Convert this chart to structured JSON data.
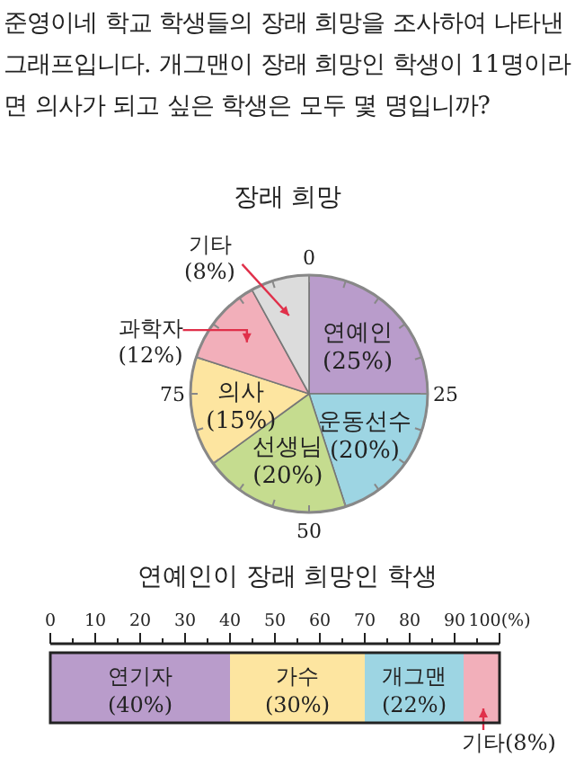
{
  "chart_data": [
    {
      "type": "pie",
      "title": "장래 희망",
      "annotations": [
        "준영이네 학교 학생들의 장래 희망을 조사하여 나타낸 그래프입니다. 개그맨이 장래 희망인 학생이 11명이라면 의사가 되고 싶은 학생은 모두 몇 명입니까?",
        "0",
        "25",
        "50",
        "75"
      ],
      "categories": [
        "연예인",
        "운동선수",
        "선생님",
        "의사",
        "과학자",
        "기타"
      ],
      "values": [
        25,
        20,
        20,
        15,
        12,
        8
      ],
      "value_labels": [
        "(25%)",
        "(20%)",
        "(20%)",
        "(15%)",
        "(12%)",
        "(8%)"
      ],
      "colors": [
        "#b99ccb",
        "#9dd5e3",
        "#c5dc8f",
        "#fde5a0",
        "#f2afba",
        "#dcdcdc"
      ]
    },
    {
      "type": "bar",
      "title": "연예인이 장래 희망인 학생",
      "orientation": "horizontal",
      "stacked": true,
      "categories": [
        null
      ],
      "series": [
        {
          "name": "연기자",
          "color": "#b99ccb",
          "values": [
            40
          ],
          "value_labels": [
            "(40%)"
          ]
        },
        {
          "name": "가수",
          "color": "#fde5a0",
          "values": [
            30
          ],
          "value_labels": [
            "(30%)"
          ]
        },
        {
          "name": "개그맨",
          "color": "#9dd5e3",
          "values": [
            22
          ],
          "value_labels": [
            "(22%)"
          ]
        },
        {
          "name": "기타",
          "color": "#f2afba",
          "values": [
            8
          ],
          "value_labels": [
            "(8%)"
          ]
        }
      ],
      "xlim": [
        0,
        100
      ],
      "xticks": [
        0,
        {
          "value": 5,
          "label": null
        },
        10,
        {
          "value": 15,
          "label": null
        },
        20,
        {
          "value": 25,
          "label": null
        },
        30,
        {
          "value": 35,
          "label": null
        },
        40,
        {
          "value": 45,
          "label": null
        },
        50,
        {
          "value": 55,
          "label": null
        },
        60,
        {
          "value": 65,
          "label": null
        },
        70,
        {
          "value": 75,
          "label": null
        },
        80,
        {
          "value": 85,
          "label": null
        },
        90,
        {
          "value": 95,
          "label": null
        },
        {
          "value": 100,
          "label": "100(%)"
        }
      ]
    }
  ]
}
